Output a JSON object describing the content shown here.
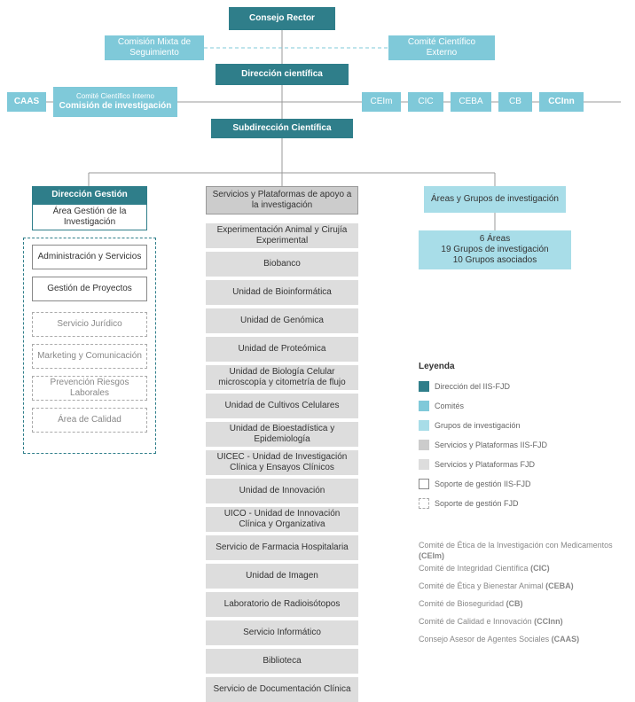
{
  "colors": {
    "dir_dark": "#2f7e8a",
    "comite": "#7fc9d9",
    "grupos": "#a8dde8",
    "svc_header": "#cccccc",
    "svc_item": "#dddddd",
    "white": "#ffffff",
    "line": "#999999",
    "line_dashed_blue": "#7fc9d9",
    "text_grey": "#888888"
  },
  "top": {
    "consejo": "Consejo Rector",
    "mixta": "Comisión Mixta de Seguimiento",
    "externo": "Comité Científico Externo",
    "dircient": "Dirección científica",
    "caas": "CAAS",
    "interno_top": "Comité Científico Interno",
    "interno_main": "Comisión de investigación",
    "ceim": "CEIm",
    "cic": "CIC",
    "ceba": "CEBA",
    "cb": "CB",
    "ccinn": "CCInn",
    "subdir": "Subdirección Científica"
  },
  "gestion": {
    "header": "Dirección Gestión",
    "area": "Área Gestión de la Investigación",
    "items_solid": [
      "Administración y Servicios",
      "Gestión de Proyectos"
    ],
    "items_dashed": [
      "Servicio Jurídico",
      "Marketing y Comunicación",
      "Prevención Riesgos Laborales",
      "Área de Calidad"
    ]
  },
  "servicios": {
    "header": "Servicios y Plataformas de apoyo a la investigación",
    "items": [
      "Experimentación Animal y Cirujía Experimental",
      "Biobanco",
      "Unidad de Bioinformática",
      "Unidad de Genómica",
      "Unidad de Proteómica",
      "Unidad de Biología Celular microscopía y citometría de flujo",
      "Unidad de Cultivos Celulares",
      "Unidad de Bioestadística y Epidemiología",
      "UICEC - Unidad de Investigación Clínica y Ensayos Clínicos",
      "Unidad de Innovación",
      "UICO - Unidad de Innovación Clínica y Organizativa",
      "Servicio de Farmacia Hospitalaria",
      "Unidad de Imagen",
      "Laboratorio de Radioisótopos",
      "Servicio Informático",
      "Biblioteca",
      "Servicio de Documentación Clínica"
    ]
  },
  "areas": {
    "header": "Áreas y Grupos de investigación",
    "body_l1": "6 Áreas",
    "body_l2": "19 Grupos de investigación",
    "body_l3": "10 Grupos asociados"
  },
  "legend": {
    "title": "Leyenda",
    "rows": [
      {
        "label": "Dirección del IIS-FJD",
        "fill": "#2f7e8a",
        "border": "#2f7e8a"
      },
      {
        "label": "Comités",
        "fill": "#7fc9d9",
        "border": "#7fc9d9"
      },
      {
        "label": "Grupos de investigación",
        "fill": "#a8dde8",
        "border": "#a8dde8"
      },
      {
        "label": "Servicios y Plataformas IIS-FJD",
        "fill": "#cccccc",
        "border": "#cccccc"
      },
      {
        "label": "Servicios y Plataformas FJD",
        "fill": "#dddddd",
        "border": "#dddddd"
      },
      {
        "label": "Soporte de gestión IIS-FJD",
        "fill": "#ffffff",
        "border": "#888888",
        "style": "solid"
      },
      {
        "label": "Soporte de gestión FJD",
        "fill": "#ffffff",
        "border": "#aaaaaa",
        "style": "dashed"
      }
    ]
  },
  "abbrs": [
    "Comité de Ética de la Investigación con Medicamentos (CEIm)",
    "Comité de Integridad Científica (CIC)",
    "Comité de Ética y Bienestar Animal (CEBA)",
    "Comité de Bioseguridad (CB)",
    "Comité de Calidad e Innovación (CCInn)",
    "Consejo Asesor de Agentes Sociales (CAAS)"
  ]
}
